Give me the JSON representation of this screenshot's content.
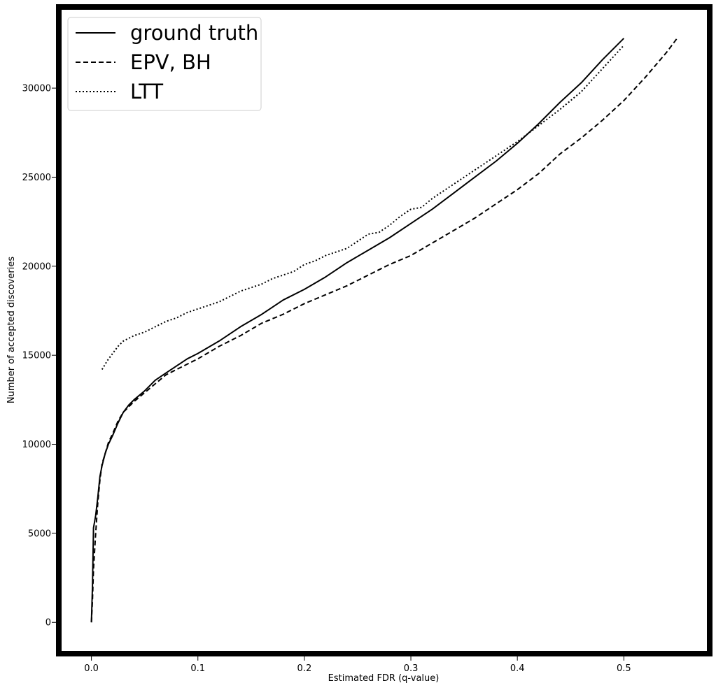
{
  "chart_data": {
    "type": "line",
    "xlabel": "Estimated FDR (q-value)",
    "ylabel": "Number of accepted discoveries",
    "xlim": [
      -0.028,
      0.578
    ],
    "ylim": [
      -1600,
      34400
    ],
    "x_ticks": [
      0.0,
      0.1,
      0.2,
      0.3,
      0.4,
      0.5
    ],
    "x_tick_labels": [
      "0.0",
      "0.1",
      "0.2",
      "0.3",
      "0.4",
      "0.5"
    ],
    "y_ticks": [
      0,
      5000,
      10000,
      15000,
      20000,
      25000,
      30000
    ],
    "y_tick_labels": [
      "0",
      "5000",
      "10000",
      "15000",
      "20000",
      "25000",
      "30000"
    ],
    "grid": false,
    "legend_position": "top-left",
    "colors": {
      "line": "#000000",
      "frame": "#000000",
      "background": "#ffffff"
    },
    "series": [
      {
        "name": "ground truth",
        "style": "solid",
        "x": [
          0.0,
          0.001,
          0.002,
          0.004,
          0.006,
          0.008,
          0.01,
          0.013,
          0.016,
          0.02,
          0.025,
          0.03,
          0.035,
          0.04,
          0.05,
          0.06,
          0.07,
          0.08,
          0.09,
          0.1,
          0.12,
          0.14,
          0.16,
          0.18,
          0.2,
          0.22,
          0.24,
          0.26,
          0.28,
          0.3,
          0.32,
          0.34,
          0.36,
          0.38,
          0.4,
          0.42,
          0.44,
          0.46,
          0.48,
          0.5
        ],
        "y": [
          0,
          2000,
          5300,
          6000,
          7000,
          8200,
          8800,
          9500,
          10000,
          10500,
          11200,
          11800,
          12200,
          12500,
          13000,
          13600,
          14000,
          14400,
          14800,
          15100,
          15800,
          16600,
          17300,
          18100,
          18700,
          19400,
          20200,
          20900,
          21600,
          22400,
          23200,
          24100,
          25000,
          25900,
          26900,
          28000,
          29200,
          30300,
          31600,
          32800
        ]
      },
      {
        "name": "EPV, BH",
        "style": "dashed",
        "x": [
          0.0,
          0.001,
          0.002,
          0.004,
          0.006,
          0.008,
          0.01,
          0.013,
          0.016,
          0.02,
          0.025,
          0.03,
          0.035,
          0.04,
          0.05,
          0.06,
          0.07,
          0.08,
          0.09,
          0.1,
          0.12,
          0.14,
          0.16,
          0.18,
          0.2,
          0.22,
          0.24,
          0.26,
          0.28,
          0.3,
          0.32,
          0.34,
          0.36,
          0.38,
          0.4,
          0.42,
          0.44,
          0.46,
          0.48,
          0.5,
          0.52,
          0.54,
          0.55
        ],
        "y": [
          0,
          1200,
          3000,
          5000,
          6700,
          8000,
          8900,
          9500,
          10100,
          10600,
          11300,
          11800,
          12100,
          12400,
          12900,
          13400,
          13900,
          14200,
          14500,
          14800,
          15500,
          16100,
          16800,
          17300,
          17900,
          18400,
          18900,
          19500,
          20100,
          20600,
          21300,
          22000,
          22700,
          23500,
          24300,
          25200,
          26300,
          27200,
          28200,
          29300,
          30600,
          32000,
          32800
        ]
      },
      {
        "name": "LTT",
        "style": "dotted",
        "x": [
          0.01,
          0.015,
          0.02,
          0.025,
          0.03,
          0.04,
          0.05,
          0.06,
          0.07,
          0.08,
          0.09,
          0.1,
          0.11,
          0.12,
          0.13,
          0.14,
          0.15,
          0.16,
          0.17,
          0.18,
          0.19,
          0.2,
          0.21,
          0.22,
          0.23,
          0.24,
          0.25,
          0.26,
          0.27,
          0.28,
          0.29,
          0.3,
          0.31,
          0.32,
          0.34,
          0.36,
          0.38,
          0.4,
          0.42,
          0.44,
          0.46,
          0.48,
          0.5
        ],
        "y": [
          14200,
          14700,
          15100,
          15500,
          15800,
          16100,
          16300,
          16600,
          16900,
          17100,
          17400,
          17600,
          17800,
          18000,
          18300,
          18600,
          18800,
          19000,
          19300,
          19500,
          19700,
          20100,
          20300,
          20600,
          20800,
          21000,
          21400,
          21800,
          21900,
          22300,
          22800,
          23200,
          23300,
          23800,
          24600,
          25400,
          26200,
          27000,
          27900,
          28800,
          29800,
          31100,
          32400
        ]
      }
    ]
  }
}
